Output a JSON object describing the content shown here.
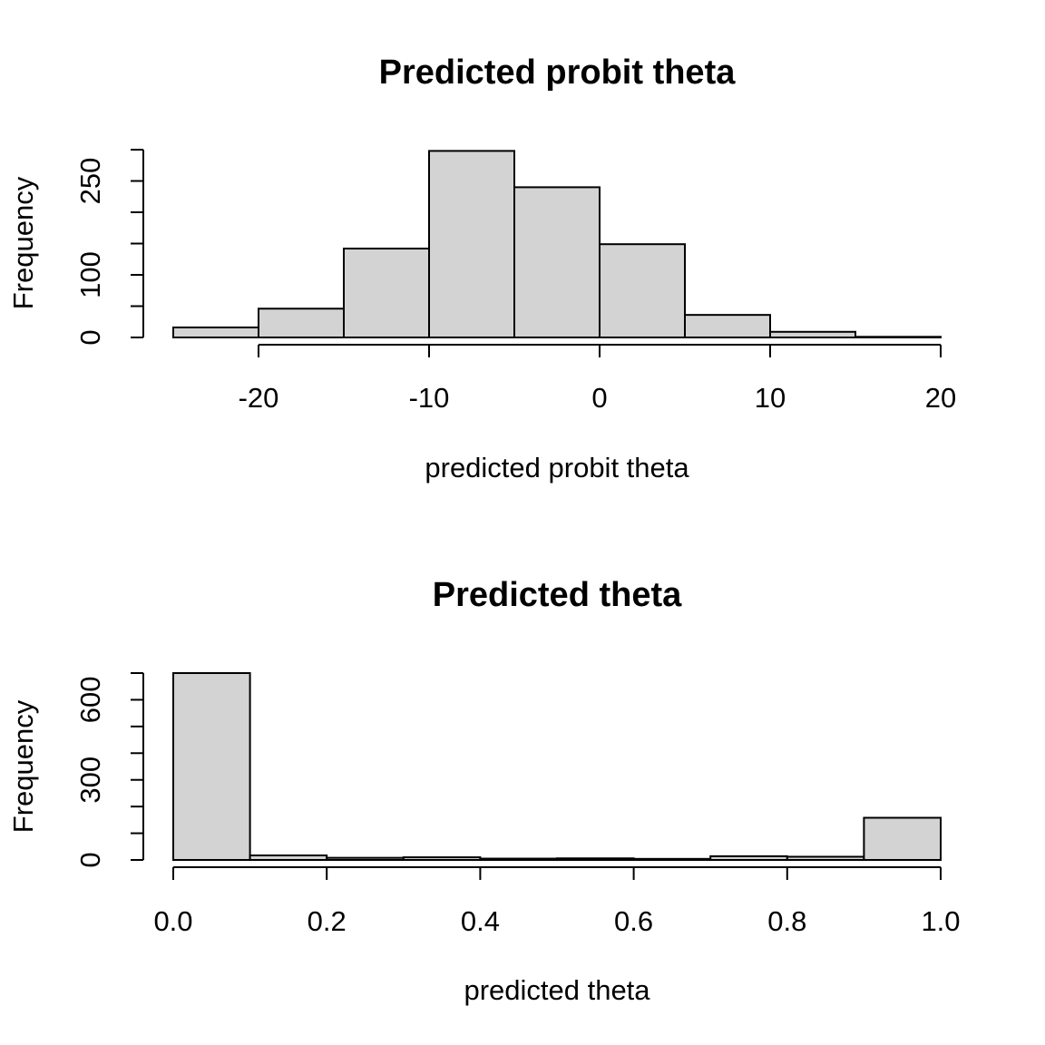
{
  "chart_data": [
    {
      "type": "bar",
      "title": "Predicted probit theta",
      "xlabel": "predicted probit theta",
      "ylabel": "Frequency",
      "bins": [
        {
          "from": -25,
          "to": -20,
          "count": 16
        },
        {
          "from": -20,
          "to": -15,
          "count": 46
        },
        {
          "from": -15,
          "to": -10,
          "count": 142
        },
        {
          "from": -10,
          "to": -5,
          "count": 298
        },
        {
          "from": -5,
          "to": 0,
          "count": 240
        },
        {
          "from": 0,
          "to": 5,
          "count": 149
        },
        {
          "from": 5,
          "to": 10,
          "count": 36
        },
        {
          "from": 10,
          "to": 15,
          "count": 9
        },
        {
          "from": 15,
          "to": 20,
          "count": 1
        }
      ],
      "x_ticks": [
        -20,
        -10,
        0,
        10,
        20
      ],
      "x_tick_labels": [
        "-20",
        "-10",
        "0",
        "10",
        "20"
      ],
      "xlim": [
        -25,
        20
      ],
      "y_ticks": [
        0,
        50,
        100,
        150,
        200,
        250,
        300
      ],
      "y_tick_labels": [
        "0",
        "",
        "100",
        "",
        "",
        "250",
        ""
      ],
      "ylim": [
        0,
        300
      ],
      "bar_color": "#d3d3d3",
      "grid": false
    },
    {
      "type": "bar",
      "title": "Predicted theta",
      "xlabel": "predicted theta",
      "ylabel": "Frequency",
      "bins": [
        {
          "from": 0.0,
          "to": 0.1,
          "count": 700
        },
        {
          "from": 0.1,
          "to": 0.2,
          "count": 17
        },
        {
          "from": 0.2,
          "to": 0.3,
          "count": 8
        },
        {
          "from": 0.3,
          "to": 0.4,
          "count": 10
        },
        {
          "from": 0.4,
          "to": 0.5,
          "count": 5
        },
        {
          "from": 0.5,
          "to": 0.6,
          "count": 6
        },
        {
          "from": 0.6,
          "to": 0.7,
          "count": 4
        },
        {
          "from": 0.7,
          "to": 0.8,
          "count": 14
        },
        {
          "from": 0.8,
          "to": 0.9,
          "count": 12
        },
        {
          "from": 0.9,
          "to": 1.0,
          "count": 158
        }
      ],
      "x_ticks": [
        0.0,
        0.2,
        0.4,
        0.6,
        0.8,
        1.0
      ],
      "x_tick_labels": [
        "0.0",
        "0.2",
        "0.4",
        "0.6",
        "0.8",
        "1.0"
      ],
      "xlim": [
        0,
        1
      ],
      "y_ticks": [
        0,
        100,
        200,
        300,
        400,
        500,
        600,
        700
      ],
      "y_tick_labels": [
        "0",
        "",
        "",
        "300",
        "",
        "",
        "600",
        ""
      ],
      "ylim": [
        0,
        700
      ],
      "bar_color": "#d3d3d3",
      "grid": false
    }
  ]
}
